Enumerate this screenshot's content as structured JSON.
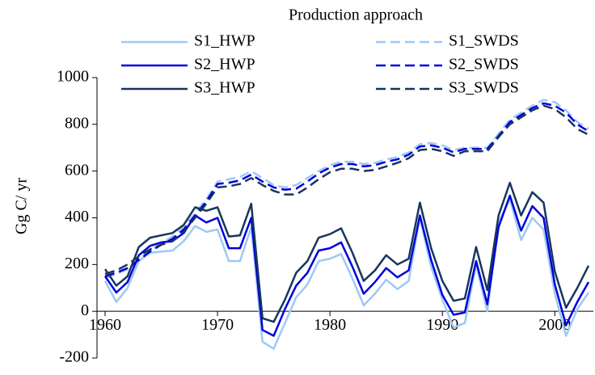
{
  "chart_data": {
    "type": "line",
    "title": "Production approach",
    "y_label": "Gg C/ yr",
    "x": [
      1960,
      1961,
      1962,
      1963,
      1964,
      1965,
      1966,
      1967,
      1968,
      1969,
      1970,
      1971,
      1972,
      1973,
      1974,
      1975,
      1976,
      1977,
      1978,
      1979,
      1980,
      1981,
      1982,
      1983,
      1984,
      1985,
      1986,
      1987,
      1988,
      1989,
      1990,
      1991,
      1992,
      1993,
      1994,
      1995,
      1996,
      1997,
      1998,
      1999,
      2000,
      2001,
      2002,
      2003
    ],
    "xlim": [
      1960,
      2003
    ],
    "xticks": [
      1960,
      1970,
      1980,
      1990,
      2000
    ],
    "ylim": [
      -200,
      1000
    ],
    "yticks": [
      -200,
      0,
      200,
      400,
      600,
      800,
      1000
    ],
    "legend": "top",
    "series": [
      {
        "name": "S1_HWP",
        "color": "#9ec9f2",
        "dashed": false,
        "values": [
          130,
          40,
          100,
          215,
          250,
          255,
          260,
          300,
          365,
          340,
          350,
          215,
          215,
          360,
          -130,
          -160,
          -50,
          60,
          115,
          215,
          225,
          245,
          140,
          25,
          75,
          135,
          95,
          130,
          400,
          190,
          50,
          -70,
          -50,
          200,
          0,
          380,
          480,
          305,
          400,
          350,
          75,
          -105,
          10,
          80
        ]
      },
      {
        "name": "S1_SWDS",
        "color": "#9ec9f2",
        "dashed": true,
        "values": [
          140,
          160,
          180,
          215,
          260,
          290,
          320,
          360,
          420,
          480,
          555,
          565,
          575,
          600,
          570,
          540,
          530,
          540,
          570,
          600,
          625,
          640,
          640,
          630,
          635,
          650,
          660,
          680,
          715,
          720,
          710,
          690,
          700,
          700,
          700,
          760,
          820,
          850,
          880,
          905,
          895,
          860,
          810,
          780
        ]
      },
      {
        "name": "S2_HWP",
        "color": "#0000dd",
        "dashed": false,
        "values": [
          150,
          80,
          125,
          240,
          280,
          295,
          300,
          335,
          410,
          380,
          400,
          270,
          270,
          400,
          -80,
          -105,
          10,
          110,
          165,
          260,
          270,
          295,
          190,
          75,
          125,
          185,
          145,
          175,
          410,
          220,
          70,
          -15,
          -5,
          215,
          30,
          360,
          495,
          345,
          450,
          400,
          115,
          -60,
          40,
          125
        ]
      },
      {
        "name": "S2_SWDS",
        "color": "#0000dd",
        "dashed": true,
        "values": [
          150,
          165,
          185,
          220,
          255,
          285,
          310,
          350,
          410,
          470,
          545,
          550,
          560,
          585,
          555,
          530,
          520,
          525,
          555,
          590,
          615,
          630,
          630,
          620,
          625,
          640,
          650,
          670,
          705,
          710,
          700,
          680,
          695,
          695,
          695,
          750,
          810,
          840,
          870,
          890,
          880,
          850,
          800,
          770
        ]
      },
      {
        "name": "S3_HWP",
        "color": "#17365d",
        "dashed": false,
        "values": [
          180,
          110,
          150,
          275,
          315,
          325,
          335,
          370,
          445,
          430,
          445,
          320,
          325,
          460,
          -30,
          -45,
          50,
          165,
          215,
          315,
          330,
          355,
          250,
          130,
          175,
          240,
          200,
          225,
          465,
          270,
          130,
          45,
          55,
          275,
          90,
          410,
          550,
          410,
          510,
          465,
          170,
          15,
          100,
          195
        ]
      },
      {
        "name": "S3_SWDS",
        "color": "#17365d",
        "dashed": true,
        "values": [
          160,
          175,
          200,
          235,
          265,
          285,
          300,
          340,
          400,
          460,
          530,
          535,
          545,
          570,
          540,
          515,
          500,
          500,
          530,
          565,
          595,
          610,
          610,
          600,
          605,
          620,
          635,
          655,
          690,
          695,
          685,
          665,
          685,
          685,
          685,
          745,
          800,
          830,
          860,
          880,
          865,
          830,
          780,
          755
        ]
      }
    ]
  }
}
